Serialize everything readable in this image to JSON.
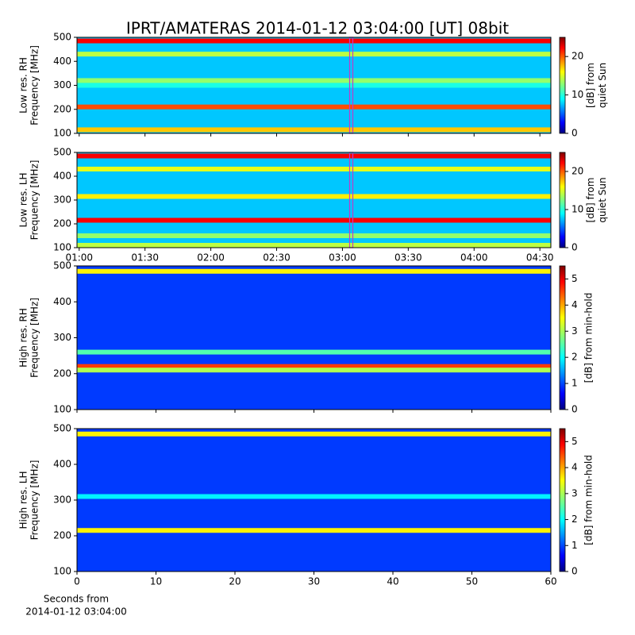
{
  "suptitle": "IPRT/AMATERAS 2014-01-12 03:04:00 [UT]   08bit",
  "chart_data": [
    {
      "type": "heatmap",
      "ylabel": [
        "Low res. RH",
        "Frequency [MHz]"
      ],
      "clabel": [
        "[dB] from",
        "quiet Sun"
      ],
      "xlim": [
        59,
        275
      ],
      "xticks": [
        60,
        90,
        120,
        150,
        180,
        210,
        240,
        270
      ],
      "ylim": [
        100,
        500
      ],
      "yticks": [
        100,
        200,
        300,
        400,
        500
      ],
      "clim": [
        0,
        25
      ],
      "cticks": [
        0,
        10,
        20
      ],
      "background": 8,
      "band_freqs": [
        485,
        430,
        320,
        300,
        210,
        115
      ],
      "band_levels": [
        22,
        14,
        13,
        10,
        20,
        17
      ],
      "marker_x": 184,
      "marker_color": "#c03cc8"
    },
    {
      "type": "heatmap",
      "ylabel": [
        "Low res. LH",
        "Frequency [MHz]"
      ],
      "clabel": [
        "[dB] from",
        "quiet Sun"
      ],
      "xlim": [
        59,
        275
      ],
      "xticks": [
        {
          "value": 60,
          "label": "01:00"
        },
        {
          "value": 90,
          "label": "01:30"
        },
        {
          "value": 120,
          "label": "02:00"
        },
        {
          "value": 150,
          "label": "02:30"
        },
        {
          "value": 180,
          "label": "03:00"
        },
        {
          "value": 210,
          "label": "03:30"
        },
        {
          "value": 240,
          "label": "04:00"
        },
        {
          "value": 270,
          "label": "04:30"
        }
      ],
      "ylim": [
        100,
        500
      ],
      "yticks": [
        100,
        200,
        300,
        400,
        500
      ],
      "clim": [
        0,
        25
      ],
      "cticks": [
        0,
        10,
        20
      ],
      "background": 8,
      "band_freqs": [
        485,
        430,
        315,
        215,
        150,
        110
      ],
      "band_levels": [
        22,
        15,
        16,
        22,
        13,
        14
      ],
      "marker_x": 184,
      "marker_color": "#c03cc8"
    },
    {
      "type": "heatmap",
      "ylabel": [
        "High res. RH",
        "Frequency [MHz]"
      ],
      "clabel": [
        "[dB] from min-hold"
      ],
      "xlim": [
        0,
        60
      ],
      "xticks": [
        0,
        10,
        20,
        30,
        40,
        50,
        60
      ],
      "ylim": [
        100,
        500
      ],
      "yticks": [
        100,
        200,
        300,
        400,
        500
      ],
      "clim": [
        0,
        5.5
      ],
      "cticks": [
        0,
        1,
        2,
        3,
        4,
        5
      ],
      "background": 1,
      "band_freqs": [
        485,
        260,
        220,
        210
      ],
      "band_levels": [
        3.5,
        2.5,
        4.5,
        3
      ]
    },
    {
      "type": "heatmap",
      "ylabel": [
        "High res. LH",
        "Frequency [MHz]"
      ],
      "clabel": [
        "[dB] from min-hold"
      ],
      "xlabel": [
        "Seconds from",
        "2014-01-12 03:04:00"
      ],
      "xlim": [
        0,
        60
      ],
      "xticks": [
        0,
        10,
        20,
        30,
        40,
        50,
        60
      ],
      "ylim": [
        100,
        500
      ],
      "yticks": [
        100,
        200,
        300,
        400,
        500
      ],
      "clim": [
        0,
        5.5
      ],
      "cticks": [
        0,
        1,
        2,
        3,
        4,
        5
      ],
      "background": 1,
      "band_freqs": [
        485,
        310,
        215
      ],
      "band_levels": [
        3.5,
        2,
        3.5
      ]
    }
  ]
}
